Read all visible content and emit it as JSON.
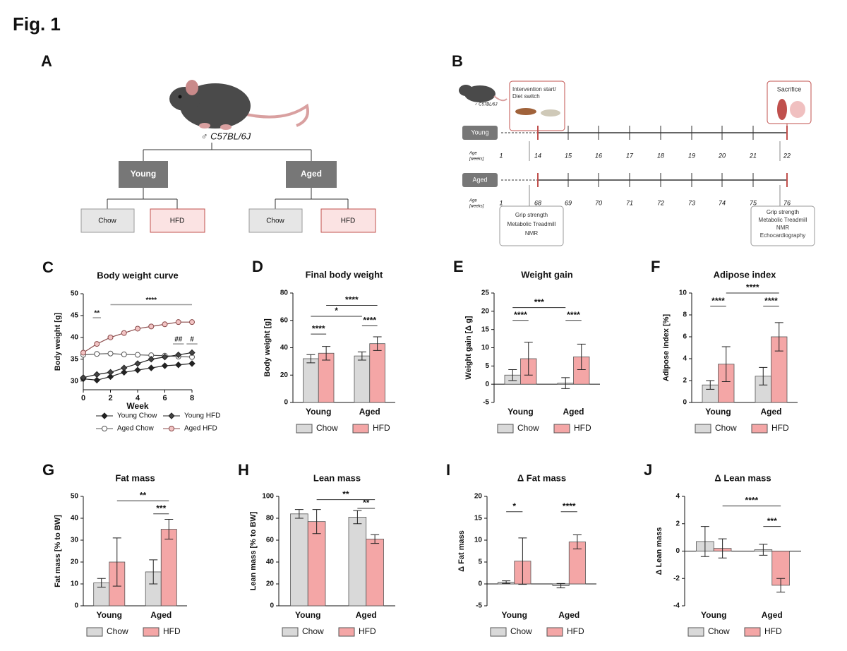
{
  "figure_label": "Fig. 1",
  "panel_a": {
    "letter": "A",
    "strain": "♂ C57BL/6J",
    "groups": [
      {
        "label": "Young",
        "diets": [
          "Chow",
          "HFD"
        ]
      },
      {
        "label": "Aged",
        "diets": [
          "Chow",
          "HFD"
        ]
      }
    ]
  },
  "panel_b": {
    "letter": "B",
    "strain": "♂ C57BL/6J",
    "start_box": [
      "Intervention start/",
      "Diet switch"
    ],
    "end_box": "Sacrifice",
    "age_label": [
      "Age",
      "[weeks]"
    ],
    "cohorts": [
      {
        "label": "Young",
        "ages": [
          "1",
          "14",
          "15",
          "16",
          "17",
          "18",
          "19",
          "20",
          "21",
          "22"
        ]
      },
      {
        "label": "Aged",
        "ages": [
          "1",
          "68",
          "69",
          "70",
          "71",
          "72",
          "73",
          "74",
          "75",
          "76"
        ]
      }
    ],
    "start_tests": [
      "Grip strength",
      "Metabolic Treadmill",
      "NMR"
    ],
    "end_tests": [
      "Grip strength",
      "Metabolic Treadmill",
      "NMR",
      "Echocardiography"
    ]
  },
  "chart_data": [
    {
      "type": "line",
      "panel": "C",
      "title": "Body weight curve",
      "xlabel": "Week",
      "ylabel": "Body weight [g]",
      "x": [
        0,
        1,
        2,
        3,
        4,
        5,
        6,
        7,
        8
      ],
      "xlim": [
        0,
        8
      ],
      "xticks": [
        0,
        2,
        4,
        6,
        8
      ],
      "ylim": [
        28,
        50
      ],
      "yticks": [
        30,
        35,
        40,
        45,
        50
      ],
      "series": [
        {
          "name": "Young Chow",
          "color": "#222222",
          "marker": "diamond",
          "fill": "#222222",
          "values": [
            30.5,
            30.2,
            31,
            32,
            32.5,
            33,
            33.5,
            33.7,
            34
          ]
        },
        {
          "name": "Aged Chow",
          "color": "#555555",
          "marker": "circle",
          "fill": "#ffffff",
          "values": [
            36,
            36.2,
            36.3,
            36.1,
            36,
            35.9,
            35.8,
            35.6,
            35.5
          ]
        },
        {
          "name": "Young HFD",
          "color": "#222222",
          "marker": "diamond",
          "fill": "#444444",
          "values": [
            30.8,
            31.5,
            32,
            33,
            34,
            35,
            35.5,
            36,
            36.5
          ]
        },
        {
          "name": "Aged HFD",
          "color": "#8a4a4a",
          "marker": "circle",
          "fill": "#f2c4c4",
          "values": [
            36.5,
            38.5,
            40,
            41,
            42,
            42.5,
            43,
            43.5,
            43.5
          ]
        }
      ],
      "annotations": [
        {
          "text": "****",
          "x": [
            2,
            8
          ],
          "y": 47.5
        },
        {
          "text": "**",
          "x": [
            0.7,
            1.3
          ],
          "y": 44.5
        },
        {
          "text": "##",
          "x": [
            6.6,
            7.4
          ],
          "y": 38.5
        },
        {
          "text": "#",
          "x": [
            7.6,
            8.4
          ],
          "y": 38.5
        }
      ]
    },
    {
      "type": "bar",
      "panel": "D",
      "title": "Final body weight",
      "ylabel": "Body weight [g]",
      "categories": [
        "Young",
        "Aged"
      ],
      "ylim": [
        0,
        80
      ],
      "yticks": [
        0,
        20,
        40,
        60,
        80
      ],
      "series": [
        {
          "name": "Chow",
          "color": "#d9d9d9",
          "values": [
            32,
            34
          ],
          "errors": [
            3,
            3
          ]
        },
        {
          "name": "HFD",
          "color": "#f4a6a6",
          "values": [
            36,
            43
          ],
          "errors": [
            5,
            5
          ]
        }
      ],
      "annotations": [
        {
          "text": "****",
          "pair": [
            [
              0,
              0
            ],
            [
              0,
              1
            ]
          ],
          "y": 50
        },
        {
          "text": "****",
          "pair": [
            [
              1,
              0
            ],
            [
              1,
              1
            ]
          ],
          "y": 56
        },
        {
          "text": "*",
          "pair": [
            [
              0,
              0
            ],
            [
              1,
              0
            ]
          ],
          "y": 63
        },
        {
          "text": "****",
          "pair": [
            [
              0,
              1
            ],
            [
              1,
              1
            ]
          ],
          "y": 71
        }
      ]
    },
    {
      "type": "bar",
      "panel": "E",
      "title": "Weight gain",
      "ylabel": "Weight gain [Δ g]",
      "categories": [
        "Young",
        "Aged"
      ],
      "ylim": [
        -5,
        25
      ],
      "yticks": [
        -5,
        0,
        5,
        10,
        15,
        20,
        25
      ],
      "series": [
        {
          "name": "Chow",
          "color": "#d9d9d9",
          "values": [
            2.5,
            0.3
          ],
          "errors": [
            1.5,
            1.5
          ]
        },
        {
          "name": "HFD",
          "color": "#f4a6a6",
          "values": [
            7,
            7.5
          ],
          "errors": [
            4.5,
            3.5
          ]
        }
      ],
      "annotations": [
        {
          "text": "****",
          "pair": [
            [
              0,
              0
            ],
            [
              0,
              1
            ]
          ],
          "y": 17.5
        },
        {
          "text": "****",
          "pair": [
            [
              1,
              0
            ],
            [
              1,
              1
            ]
          ],
          "y": 17.5
        },
        {
          "text": "***",
          "pair": [
            [
              0,
              0
            ],
            [
              1,
              0
            ]
          ],
          "y": 21
        }
      ]
    },
    {
      "type": "bar",
      "panel": "F",
      "title": "Adipose index",
      "ylabel": "Adipose index [%]",
      "categories": [
        "Young",
        "Aged"
      ],
      "ylim": [
        0,
        10
      ],
      "yticks": [
        0,
        2,
        4,
        6,
        8,
        10
      ],
      "series": [
        {
          "name": "Chow",
          "color": "#d9d9d9",
          "values": [
            1.6,
            2.4
          ],
          "errors": [
            0.4,
            0.8
          ]
        },
        {
          "name": "HFD",
          "color": "#f4a6a6",
          "values": [
            3.5,
            6.0
          ],
          "errors": [
            1.6,
            1.3
          ]
        }
      ],
      "annotations": [
        {
          "text": "****",
          "pair": [
            [
              0,
              0
            ],
            [
              0,
              1
            ]
          ],
          "y": 8.8
        },
        {
          "text": "****",
          "pair": [
            [
              1,
              0
            ],
            [
              1,
              1
            ]
          ],
          "y": 8.8
        },
        {
          "text": "****",
          "pair": [
            [
              0,
              1
            ],
            [
              1,
              1
            ]
          ],
          "y": 10
        }
      ]
    },
    {
      "type": "bar",
      "panel": "G",
      "title": "Fat mass",
      "ylabel": "Fat mass [% to BW]",
      "categories": [
        "Young",
        "Aged"
      ],
      "ylim": [
        0,
        50
      ],
      "yticks": [
        0,
        10,
        20,
        30,
        40,
        50
      ],
      "series": [
        {
          "name": "Chow",
          "color": "#d9d9d9",
          "values": [
            10.5,
            15.5
          ],
          "errors": [
            2,
            5.5
          ]
        },
        {
          "name": "HFD",
          "color": "#f4a6a6",
          "values": [
            20,
            35
          ],
          "errors": [
            11,
            4.5
          ]
        }
      ],
      "annotations": [
        {
          "text": "***",
          "pair": [
            [
              1,
              0
            ],
            [
              1,
              1
            ]
          ],
          "y": 42
        },
        {
          "text": "**",
          "pair": [
            [
              0,
              1
            ],
            [
              1,
              1
            ]
          ],
          "y": 48
        }
      ]
    },
    {
      "type": "bar",
      "panel": "H",
      "title": "Lean mass",
      "ylabel": "Lean mass [% to BW]",
      "categories": [
        "Young",
        "Aged"
      ],
      "ylim": [
        0,
        100
      ],
      "yticks": [
        0,
        20,
        40,
        60,
        80,
        100
      ],
      "series": [
        {
          "name": "Chow",
          "color": "#d9d9d9",
          "values": [
            84,
            81
          ],
          "errors": [
            4,
            6
          ]
        },
        {
          "name": "HFD",
          "color": "#f4a6a6",
          "values": [
            77,
            61
          ],
          "errors": [
            11,
            4
          ]
        }
      ],
      "annotations": [
        {
          "text": "**",
          "pair": [
            [
              1,
              0
            ],
            [
              1,
              1
            ]
          ],
          "y": 89
        },
        {
          "text": "**",
          "pair": [
            [
              0,
              1
            ],
            [
              1,
              1
            ]
          ],
          "y": 97
        }
      ]
    },
    {
      "type": "bar",
      "panel": "I",
      "title": "Δ Fat mass",
      "ylabel": "Δ Fat mass",
      "categories": [
        "Young",
        "Aged"
      ],
      "ylim": [
        -5,
        20
      ],
      "yticks": [
        -5,
        0,
        5,
        10,
        15,
        20
      ],
      "series": [
        {
          "name": "Chow",
          "color": "#d9d9d9",
          "values": [
            0.4,
            -0.4
          ],
          "errors": [
            0.3,
            0.5
          ]
        },
        {
          "name": "HFD",
          "color": "#f4a6a6",
          "values": [
            5.2,
            9.6
          ],
          "errors": [
            5.3,
            1.6
          ]
        }
      ],
      "annotations": [
        {
          "text": "*",
          "pair": [
            [
              0,
              0
            ],
            [
              0,
              1
            ]
          ],
          "y": 16.5
        },
        {
          "text": "****",
          "pair": [
            [
              1,
              0
            ],
            [
              1,
              1
            ]
          ],
          "y": 16.5
        }
      ]
    },
    {
      "type": "bar",
      "panel": "J",
      "title": "Δ Lean mass",
      "ylabel": "Δ Lean mass",
      "categories": [
        "Young",
        "Aged"
      ],
      "ylim": [
        -4,
        4
      ],
      "yticks": [
        -4,
        -2,
        0,
        2,
        4
      ],
      "series": [
        {
          "name": "Chow",
          "color": "#d9d9d9",
          "values": [
            0.7,
            0.1
          ],
          "errors": [
            1.1,
            0.4
          ]
        },
        {
          "name": "HFD",
          "color": "#f4a6a6",
          "values": [
            0.2,
            -2.5
          ],
          "errors": [
            0.7,
            0.5
          ]
        }
      ],
      "annotations": [
        {
          "text": "***",
          "pair": [
            [
              1,
              0
            ],
            [
              1,
              1
            ]
          ],
          "y": 1.8
        },
        {
          "text": "****",
          "pair": [
            [
              0,
              1
            ],
            [
              1,
              1
            ]
          ],
          "y": 3.3
        }
      ]
    }
  ]
}
